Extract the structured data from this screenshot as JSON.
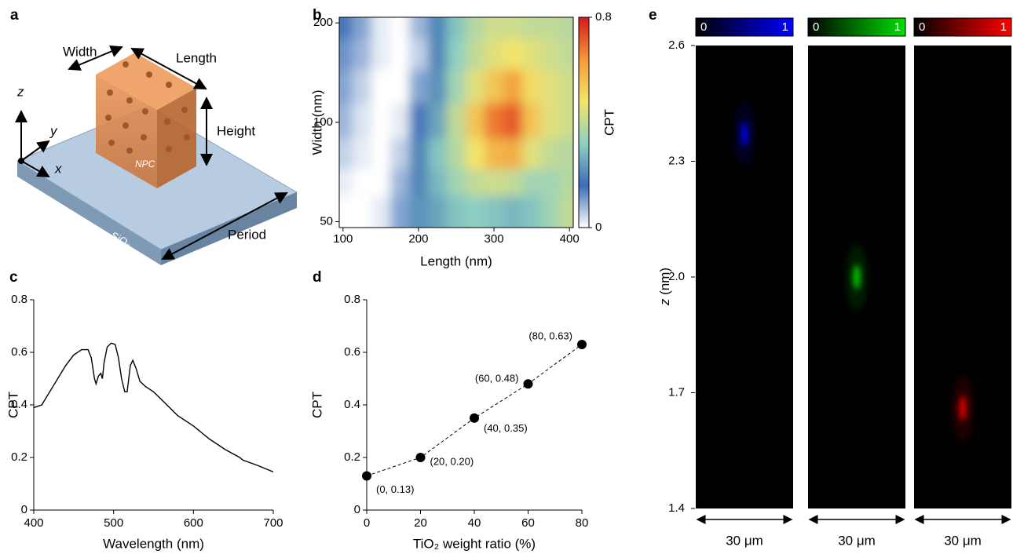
{
  "diagram": {
    "panel_label": "a",
    "width": "Width",
    "length": "Length",
    "height": "Height",
    "period": "Period",
    "npc": "NPC",
    "substrate": "SiO₂",
    "axis_z": "z",
    "axis_y": "y",
    "axis_x": "x"
  },
  "chart_data": [
    {
      "type": "heatmap",
      "panel_label": "b",
      "xlabel": "Length (nm)",
      "ylabel": "Width (nm)",
      "colorbar_label": "CPT",
      "x": [
        100,
        125,
        150,
        175,
        200,
        225,
        250,
        275,
        300,
        325,
        350,
        375,
        400
      ],
      "y": [
        200,
        160,
        130,
        100,
        80,
        65,
        55
      ],
      "values": [
        [
          0.15,
          0.1,
          0.02,
          0.0,
          0.08,
          0.2,
          0.3,
          0.38,
          0.42,
          0.42,
          0.4,
          0.4,
          0.38
        ],
        [
          0.12,
          0.08,
          0.02,
          0.0,
          0.05,
          0.2,
          0.32,
          0.4,
          0.45,
          0.48,
          0.45,
          0.42,
          0.4
        ],
        [
          0.1,
          0.05,
          0.0,
          0.0,
          0.1,
          0.22,
          0.35,
          0.45,
          0.55,
          0.62,
          0.5,
          0.45,
          0.42
        ],
        [
          0.08,
          0.03,
          0.0,
          0.02,
          0.15,
          0.25,
          0.4,
          0.55,
          0.68,
          0.72,
          0.55,
          0.45,
          0.42
        ],
        [
          0.05,
          0.02,
          0.0,
          0.05,
          0.2,
          0.3,
          0.38,
          0.48,
          0.58,
          0.6,
          0.45,
          0.4,
          0.38
        ],
        [
          0.02,
          0.0,
          0.0,
          0.08,
          0.2,
          0.28,
          0.35,
          0.4,
          0.42,
          0.4,
          0.35,
          0.35,
          0.38
        ],
        [
          0.0,
          0.0,
          0.02,
          0.1,
          0.22,
          0.25,
          0.3,
          0.32,
          0.3,
          0.28,
          0.3,
          0.35,
          0.4
        ]
      ],
      "xlim": [
        95,
        405
      ],
      "xticks": [
        100,
        200,
        300,
        400
      ],
      "ylim": [
        48,
        208
      ],
      "yticks": [
        50,
        100,
        200
      ],
      "log_y": true,
      "zlim": [
        0,
        0.8
      ],
      "zticks": [
        0,
        0.8
      ],
      "colormap": [
        "#ffffff",
        "#3a6db5",
        "#8fd0c2",
        "#f3e46b",
        "#f39a38",
        "#d7191c"
      ]
    },
    {
      "type": "line",
      "panel_label": "c",
      "xlabel": "Wavelength (nm)",
      "ylabel": "CPT",
      "color": "#000000",
      "x": [
        400,
        410,
        420,
        430,
        440,
        450,
        460,
        468,
        472,
        476,
        478,
        481,
        484,
        486,
        488,
        492,
        497,
        502,
        506,
        510,
        514,
        517,
        521,
        524,
        528,
        533,
        540,
        550,
        560,
        580,
        600,
        620,
        640,
        658,
        662,
        680,
        700
      ],
      "values": [
        0.39,
        0.4,
        0.45,
        0.5,
        0.55,
        0.59,
        0.61,
        0.61,
        0.58,
        0.5,
        0.48,
        0.51,
        0.52,
        0.5,
        0.56,
        0.62,
        0.635,
        0.63,
        0.58,
        0.5,
        0.45,
        0.45,
        0.55,
        0.57,
        0.54,
        0.49,
        0.47,
        0.45,
        0.42,
        0.36,
        0.32,
        0.27,
        0.23,
        0.2,
        0.19,
        0.17,
        0.145
      ],
      "xlim": [
        400,
        700
      ],
      "xticks": [
        400,
        500,
        600,
        700
      ],
      "ylim": [
        0,
        0.8
      ],
      "yticks": [
        0,
        0.2,
        0.4,
        0.6,
        0.8
      ]
    },
    {
      "type": "scatter",
      "panel_label": "d",
      "xlabel": "TiO₂ weight ratio (%)",
      "ylabel": "CPT",
      "color": "#000000",
      "line_style": "dashed",
      "x": [
        0,
        20,
        40,
        60,
        80
      ],
      "values": [
        0.13,
        0.2,
        0.35,
        0.48,
        0.63
      ],
      "value_labels": [
        "(0, 0.13)",
        "(20, 0.20)",
        "(40, 0.35)",
        "(60, 0.48)",
        "(80, 0.63)"
      ],
      "xlim": [
        0,
        80
      ],
      "xticks": [
        0,
        20,
        40,
        60,
        80
      ],
      "ylim": [
        0,
        0.8
      ],
      "yticks": [
        0,
        0.2,
        0.4,
        0.6,
        0.8
      ]
    },
    {
      "type": "image",
      "panel_label": "e",
      "ylabel_var": "z",
      "ylabel_unit": "(nm)",
      "scale_label": "30 μm",
      "ylim": [
        1.4,
        2.6
      ],
      "yticks": [
        1.4,
        1.7,
        {
          "value": 2,
          "label": "2.0"
        },
        2.3,
        2.6
      ],
      "zticks": [
        0,
        1
      ],
      "series": [
        {
          "color": "#0000ff",
          "z": 2.37
        },
        {
          "color": "#00e000",
          "z": 2.0
        },
        {
          "color": "#ff0000",
          "z": 1.66
        }
      ]
    }
  ]
}
